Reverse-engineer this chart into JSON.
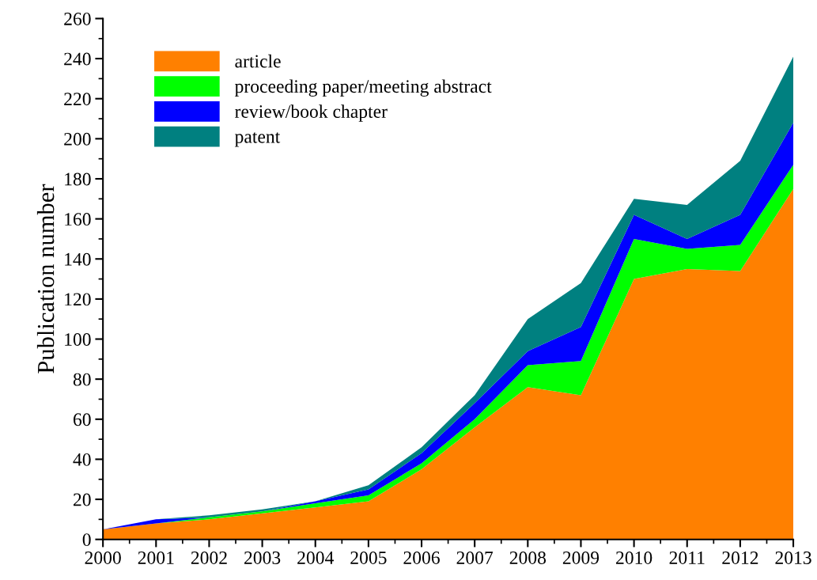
{
  "chart_data": {
    "type": "area",
    "stacked": true,
    "ylabel": "Publication number",
    "x": [
      2000,
      2001,
      2002,
      2003,
      2004,
      2005,
      2006,
      2007,
      2008,
      2009,
      2010,
      2011,
      2012,
      2013
    ],
    "series": [
      {
        "name": "article",
        "color": "#ff8000",
        "values": [
          5,
          8,
          10,
          13,
          16,
          19,
          35,
          56,
          76,
          72,
          130,
          135,
          134,
          175
        ]
      },
      {
        "name": "proceeding paper/meeting abstract",
        "color": "#00ff00",
        "values": [
          0,
          0,
          1,
          1,
          2,
          3,
          3,
          4,
          11,
          17,
          20,
          10,
          13,
          12
        ]
      },
      {
        "name": "review/book chapter",
        "color": "#0000ff",
        "values": [
          0,
          2,
          0,
          0,
          1,
          3,
          5,
          8,
          7,
          17,
          12,
          5,
          15,
          21
        ]
      },
      {
        "name": "patent",
        "color": "#008080",
        "values": [
          0,
          0,
          1,
          1,
          0,
          2,
          3,
          4,
          16,
          22,
          8,
          17,
          27,
          33
        ]
      }
    ],
    "xlim": [
      2000,
      2013
    ],
    "xticks": [
      2000,
      2001,
      2002,
      2003,
      2004,
      2005,
      2006,
      2007,
      2008,
      2009,
      2010,
      2011,
      2012,
      2013
    ],
    "ylim": [
      0,
      260
    ],
    "yticks": [
      0,
      20,
      40,
      60,
      80,
      100,
      120,
      140,
      160,
      180,
      200,
      220,
      240,
      260
    ],
    "legend": "top left",
    "grid": false
  }
}
